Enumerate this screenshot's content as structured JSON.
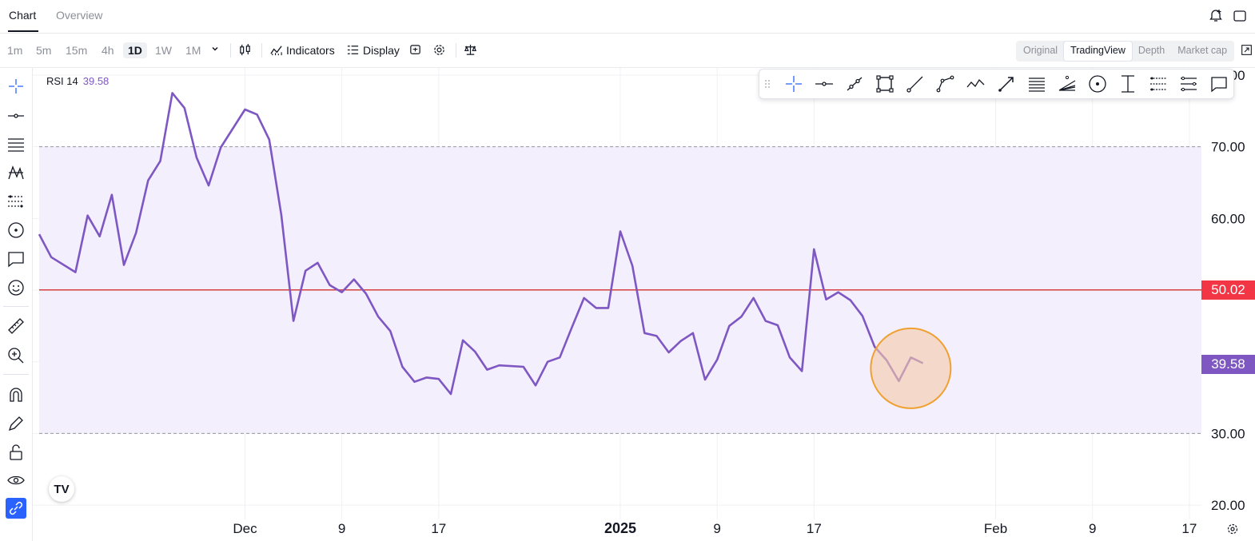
{
  "tabs": [
    {
      "label": "Chart",
      "active": true
    },
    {
      "label": "Overview",
      "active": false
    }
  ],
  "toolbar": {
    "timeframes": [
      "1m",
      "5m",
      "15m",
      "4h",
      "1D",
      "1W",
      "1M"
    ],
    "selected_timeframe": "1D",
    "indicators_label": "Indicators",
    "display_label": "Display",
    "view_options": [
      "Original",
      "TradingView",
      "Depth",
      "Market cap"
    ],
    "selected_view": "TradingView"
  },
  "indicator": {
    "name": "RSI 14",
    "value": "39.58"
  },
  "tv_logo_text": "TV",
  "colors": {
    "rsi_line": "#7e57c2",
    "band_fill": "#f3effd",
    "midline": "#d32f2f",
    "mid_badge": "#f23645",
    "last_badge": "#7e57c2",
    "highlight_circle_stroke": "#f0a030",
    "highlight_circle_fill": "#f5c9a8"
  },
  "chart_data": {
    "type": "line",
    "title": "",
    "xlabel": "",
    "ylabel": "",
    "ylim": [
      18,
      81
    ],
    "y_ticks": [
      "20.00",
      "30.00",
      "60.00",
      "70.00",
      "80.00"
    ],
    "x_ticks": [
      {
        "date": "2024-12-01",
        "label": "Dec",
        "bold": false
      },
      {
        "date": "2024-12-09",
        "label": "9",
        "bold": false
      },
      {
        "date": "2024-12-17",
        "label": "17",
        "bold": false
      },
      {
        "date": "2025-01-01",
        "label": "2025",
        "bold": true
      },
      {
        "date": "2025-01-09",
        "label": "9",
        "bold": false
      },
      {
        "date": "2025-01-17",
        "label": "17",
        "bold": false
      },
      {
        "date": "2025-02-01",
        "label": "Feb",
        "bold": false
      },
      {
        "date": "2025-02-09",
        "label": "9",
        "bold": false
      },
      {
        "date": "2025-02-17",
        "label": "17",
        "bold": false
      }
    ],
    "x_range": [
      "2024-11-14",
      "2025-02-18"
    ],
    "band": {
      "upper": 70,
      "lower": 30
    },
    "midline": {
      "value": 50.02,
      "label": "50.02"
    },
    "last_value": {
      "value": 39.58,
      "label": "39.58"
    },
    "series": [
      {
        "values": [
          {
            "x": "2024-11-14",
            "y": 57.8
          },
          {
            "x": "2024-11-15",
            "y": 54.6
          },
          {
            "x": "2024-11-17",
            "y": 52.5
          },
          {
            "x": "2024-11-18",
            "y": 60.4
          },
          {
            "x": "2024-11-19",
            "y": 57.5
          },
          {
            "x": "2024-11-20",
            "y": 63.3
          },
          {
            "x": "2024-11-21",
            "y": 53.5
          },
          {
            "x": "2024-11-22",
            "y": 58.0
          },
          {
            "x": "2024-11-23",
            "y": 65.3
          },
          {
            "x": "2024-11-24",
            "y": 68.0
          },
          {
            "x": "2024-11-25",
            "y": 77.5
          },
          {
            "x": "2024-11-26",
            "y": 75.4
          },
          {
            "x": "2024-11-27",
            "y": 68.5
          },
          {
            "x": "2024-11-28",
            "y": 64.6
          },
          {
            "x": "2024-11-29",
            "y": 69.9
          },
          {
            "x": "2024-12-01",
            "y": 75.2
          },
          {
            "x": "2024-12-02",
            "y": 74.5
          },
          {
            "x": "2024-12-03",
            "y": 71.0
          },
          {
            "x": "2024-12-04",
            "y": 60.5
          },
          {
            "x": "2024-12-05",
            "y": 45.7
          },
          {
            "x": "2024-12-06",
            "y": 52.7
          },
          {
            "x": "2024-12-07",
            "y": 53.8
          },
          {
            "x": "2024-12-08",
            "y": 50.7
          },
          {
            "x": "2024-12-09",
            "y": 49.7
          },
          {
            "x": "2024-12-10",
            "y": 51.5
          },
          {
            "x": "2024-12-11",
            "y": 49.5
          },
          {
            "x": "2024-12-12",
            "y": 46.3
          },
          {
            "x": "2024-12-13",
            "y": 44.3
          },
          {
            "x": "2024-12-14",
            "y": 39.3
          },
          {
            "x": "2024-12-15",
            "y": 37.2
          },
          {
            "x": "2024-12-16",
            "y": 37.8
          },
          {
            "x": "2024-12-17",
            "y": 37.6
          },
          {
            "x": "2024-12-18",
            "y": 35.5
          },
          {
            "x": "2024-12-19",
            "y": 43.0
          },
          {
            "x": "2024-12-20",
            "y": 41.4
          },
          {
            "x": "2024-12-21",
            "y": 38.9
          },
          {
            "x": "2024-12-22",
            "y": 39.5
          },
          {
            "x": "2024-12-24",
            "y": 39.3
          },
          {
            "x": "2024-12-25",
            "y": 36.7
          },
          {
            "x": "2024-12-26",
            "y": 40.0
          },
          {
            "x": "2024-12-27",
            "y": 40.6
          },
          {
            "x": "2024-12-28",
            "y": 44.8
          },
          {
            "x": "2024-12-29",
            "y": 48.9
          },
          {
            "x": "2024-12-30",
            "y": 47.5
          },
          {
            "x": "2024-12-31",
            "y": 47.5
          },
          {
            "x": "2025-01-01",
            "y": 58.2
          },
          {
            "x": "2025-01-02",
            "y": 53.4
          },
          {
            "x": "2025-01-03",
            "y": 44.0
          },
          {
            "x": "2025-01-04",
            "y": 43.6
          },
          {
            "x": "2025-01-05",
            "y": 41.3
          },
          {
            "x": "2025-01-06",
            "y": 42.9
          },
          {
            "x": "2025-01-07",
            "y": 44.0
          },
          {
            "x": "2025-01-08",
            "y": 37.5
          },
          {
            "x": "2025-01-09",
            "y": 40.3
          },
          {
            "x": "2025-01-10",
            "y": 45.0
          },
          {
            "x": "2025-01-11",
            "y": 46.3
          },
          {
            "x": "2025-01-12",
            "y": 48.9
          },
          {
            "x": "2025-01-13",
            "y": 45.7
          },
          {
            "x": "2025-01-14",
            "y": 45.1
          },
          {
            "x": "2025-01-15",
            "y": 40.6
          },
          {
            "x": "2025-01-16",
            "y": 38.7
          },
          {
            "x": "2025-01-17",
            "y": 55.7
          },
          {
            "x": "2025-01-18",
            "y": 48.7
          },
          {
            "x": "2025-01-19",
            "y": 49.7
          },
          {
            "x": "2025-01-20",
            "y": 48.6
          },
          {
            "x": "2025-01-21",
            "y": 46.4
          },
          {
            "x": "2025-01-22",
            "y": 42.1
          },
          {
            "x": "2025-01-23",
            "y": 40.2
          },
          {
            "x": "2025-01-24",
            "y": 37.3
          },
          {
            "x": "2025-01-25",
            "y": 40.6
          },
          {
            "x": "2025-01-26",
            "y": 39.8
          }
        ]
      }
    ]
  }
}
